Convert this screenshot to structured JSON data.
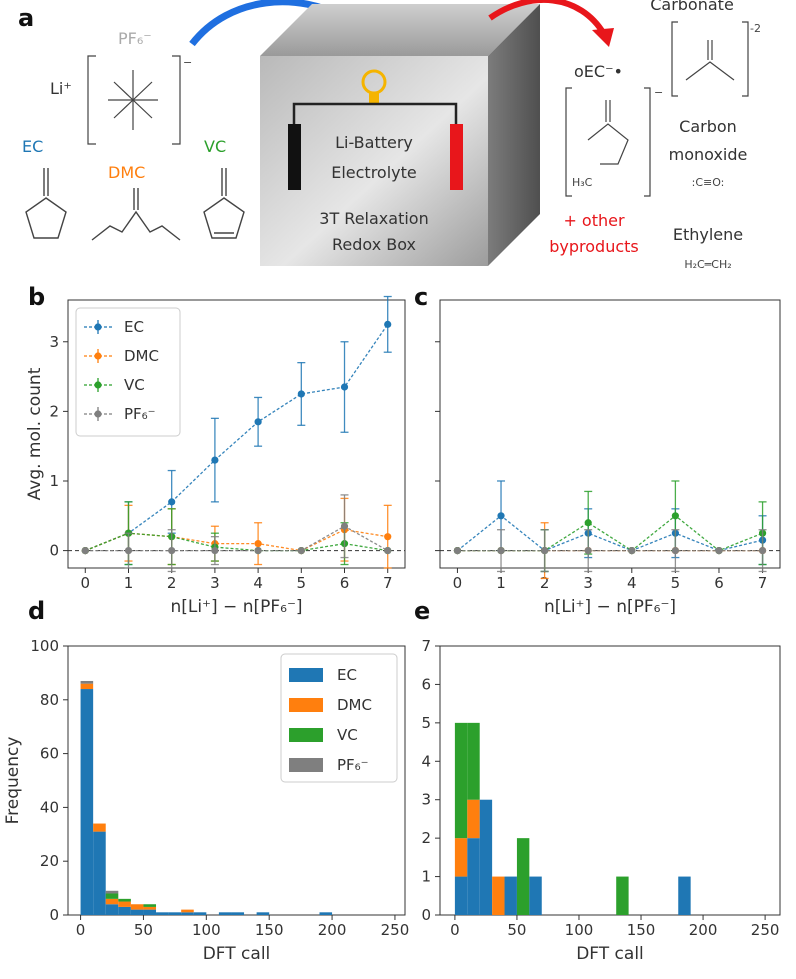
{
  "colors": {
    "EC": "#1f77b4",
    "DMC": "#ff7f0e",
    "VC": "#2ca02c",
    "PF6": "#7f7f7f",
    "blue_arrow": "#1f6fe0",
    "red": "#e8161b"
  },
  "schematic": {
    "panel_label": "a",
    "pf6": "PF₆⁻",
    "li": "Li⁺",
    "ec": "EC",
    "dmc": "DMC",
    "vc": "VC",
    "box_line1": "Li-Battery",
    "box_line2": "Electrolyte",
    "box_line3": "3T Relaxation",
    "box_line4": "Redox Box",
    "carbonate": "Carbonate",
    "carbonate_charge": "-2",
    "oec": "oEC⁻•",
    "carbon_monoxide_1": "Carbon",
    "carbon_monoxide_2": "monoxide",
    "co_formula": ":C≡O:",
    "ethylene": "Ethylene",
    "ethylene_formula": "H₂C═CH₂",
    "other_1": "+ other",
    "other_2": "byproducts",
    "h3c": "H₃C"
  },
  "chart_data": [
    {
      "panel": "b",
      "type": "line",
      "xlabel": "n[Li⁺] − n[PF₆⁻]",
      "ylabel": "Avg. mol. count",
      "x": [
        0,
        1,
        2,
        3,
        4,
        5,
        6,
        7
      ],
      "xlim": [
        -0.4,
        7.4
      ],
      "ylim": [
        -0.25,
        3.6
      ],
      "xticks": [
        "0",
        "1",
        "2",
        "3",
        "4",
        "5",
        "6",
        "7"
      ],
      "yticks": [
        "0",
        "1",
        "2",
        "3"
      ],
      "legend": [
        "EC",
        "DMC",
        "VC",
        "PF₆⁻"
      ],
      "legend_position": "upper-left",
      "baseline": 0,
      "series": [
        {
          "name": "EC",
          "values": [
            0,
            0.25,
            0.7,
            1.3,
            1.85,
            2.25,
            2.35,
            3.25
          ],
          "err": [
            0,
            0.45,
            0.45,
            0.6,
            0.35,
            0.45,
            0.65,
            0.4
          ]
        },
        {
          "name": "DMC",
          "values": [
            0,
            0.25,
            0.2,
            0.1,
            0.1,
            0,
            0.3,
            0.2
          ],
          "err": [
            0,
            0.4,
            0.4,
            0.25,
            0.3,
            0,
            0.45,
            0.45
          ]
        },
        {
          "name": "VC",
          "values": [
            0,
            0.25,
            0.2,
            0.05,
            0,
            0,
            0.1,
            0
          ],
          "err": [
            0,
            0.45,
            0.4,
            0.2,
            0,
            0,
            0.3,
            0
          ]
        },
        {
          "name": "PF₆⁻",
          "values": [
            0,
            0,
            0,
            0,
            0,
            0,
            0.35,
            0
          ],
          "err": [
            0,
            0.25,
            0.3,
            0.2,
            0,
            0,
            0.45,
            0
          ]
        }
      ]
    },
    {
      "panel": "c",
      "type": "line",
      "xlabel": "n[Li⁺] − n[PF₆⁻]",
      "x": [
        0,
        1,
        2,
        3,
        4,
        5,
        6,
        7
      ],
      "xlim": [
        -0.4,
        7.4
      ],
      "ylim": [
        -0.25,
        3.6
      ],
      "xticks": [
        "0",
        "1",
        "2",
        "3",
        "4",
        "5",
        "6",
        "7"
      ],
      "baseline": 0,
      "series": [
        {
          "name": "EC",
          "values": [
            0,
            0.5,
            0,
            0.25,
            0,
            0.25,
            0,
            0.15
          ],
          "err": [
            0,
            0.5,
            0.3,
            0.35,
            0,
            0.35,
            0,
            0.35
          ]
        },
        {
          "name": "DMC",
          "values": [
            0,
            0,
            0,
            0,
            0,
            0,
            0,
            0
          ],
          "err": [
            0,
            0,
            0.4,
            0,
            0,
            0,
            0,
            0
          ]
        },
        {
          "name": "VC",
          "values": [
            0,
            0,
            0,
            0.4,
            0,
            0.5,
            0,
            0.25
          ],
          "err": [
            0,
            0,
            0.3,
            0.45,
            0,
            0.5,
            0,
            0.45
          ]
        },
        {
          "name": "PF₆⁻",
          "values": [
            0,
            0,
            0,
            0,
            0,
            0,
            0,
            0
          ],
          "err": [
            0,
            0.3,
            0.3,
            0.3,
            0,
            0.3,
            0,
            0.3
          ]
        }
      ]
    },
    {
      "panel": "d",
      "type": "bar",
      "stacked": true,
      "xlabel": "DFT call",
      "ylabel": "Frequency",
      "xlim": [
        -10,
        258
      ],
      "ylim": [
        0,
        100
      ],
      "xticks": [
        "0",
        "50",
        "100",
        "150",
        "200",
        "250"
      ],
      "yticks": [
        "0",
        "20",
        "40",
        "60",
        "80",
        "100"
      ],
      "legend": [
        "EC",
        "DMC",
        "VC",
        "PF₆⁻"
      ],
      "legend_position": "upper-right",
      "bins": [
        {
          "x0": 0,
          "x1": 10,
          "EC": 84,
          "DMC": 2,
          "VC": 0,
          "PF6": 1
        },
        {
          "x0": 10,
          "x1": 20,
          "EC": 31,
          "DMC": 3,
          "VC": 0,
          "PF6": 0
        },
        {
          "x0": 20,
          "x1": 30,
          "EC": 4,
          "DMC": 2,
          "VC": 2,
          "PF6": 1
        },
        {
          "x0": 30,
          "x1": 40,
          "EC": 3,
          "DMC": 2,
          "VC": 1,
          "PF6": 0
        },
        {
          "x0": 40,
          "x1": 50,
          "EC": 2,
          "DMC": 2,
          "VC": 0,
          "PF6": 0
        },
        {
          "x0": 50,
          "x1": 60,
          "EC": 2,
          "DMC": 1,
          "VC": 1,
          "PF6": 0
        },
        {
          "x0": 60,
          "x1": 70,
          "EC": 1,
          "DMC": 0,
          "VC": 0,
          "PF6": 0
        },
        {
          "x0": 70,
          "x1": 80,
          "EC": 1,
          "DMC": 0,
          "VC": 0,
          "PF6": 0
        },
        {
          "x0": 80,
          "x1": 90,
          "EC": 1,
          "DMC": 1,
          "VC": 0,
          "PF6": 0
        },
        {
          "x0": 90,
          "x1": 100,
          "EC": 1,
          "DMC": 0,
          "VC": 0,
          "PF6": 0
        },
        {
          "x0": 110,
          "x1": 120,
          "EC": 1,
          "DMC": 0,
          "VC": 0,
          "PF6": 0
        },
        {
          "x0": 120,
          "x1": 130,
          "EC": 1,
          "DMC": 0,
          "VC": 0,
          "PF6": 0
        },
        {
          "x0": 140,
          "x1": 150,
          "EC": 1,
          "DMC": 0,
          "VC": 0,
          "PF6": 0
        },
        {
          "x0": 190,
          "x1": 200,
          "EC": 1,
          "DMC": 0,
          "VC": 0,
          "PF6": 0
        }
      ]
    },
    {
      "panel": "e",
      "type": "bar",
      "stacked": true,
      "xlabel": "DFT call",
      "xlim": [
        -12,
        262
      ],
      "ylim": [
        0,
        7
      ],
      "xticks": [
        "0",
        "50",
        "100",
        "150",
        "200",
        "250"
      ],
      "yticks": [
        "0",
        "1",
        "2",
        "3",
        "4",
        "5",
        "6",
        "7"
      ],
      "bins": [
        {
          "x0": 0,
          "x1": 10,
          "EC": 1,
          "DMC": 1,
          "VC": 3,
          "PF6": 0
        },
        {
          "x0": 10,
          "x1": 20,
          "EC": 2,
          "DMC": 1,
          "VC": 2,
          "PF6": 0
        },
        {
          "x0": 20,
          "x1": 30,
          "EC": 3,
          "DMC": 0,
          "VC": 0,
          "PF6": 0
        },
        {
          "x0": 30,
          "x1": 40,
          "EC": 0,
          "DMC": 1,
          "VC": 0,
          "PF6": 0
        },
        {
          "x0": 40,
          "x1": 50,
          "EC": 1,
          "DMC": 0,
          "VC": 0,
          "PF6": 0
        },
        {
          "x0": 50,
          "x1": 60,
          "EC": 0,
          "DMC": 0,
          "VC": 2,
          "PF6": 0
        },
        {
          "x0": 60,
          "x1": 70,
          "EC": 1,
          "DMC": 0,
          "VC": 0,
          "PF6": 0
        },
        {
          "x0": 130,
          "x1": 140,
          "EC": 0,
          "DMC": 0,
          "VC": 1,
          "PF6": 0
        },
        {
          "x0": 180,
          "x1": 190,
          "EC": 1,
          "DMC": 0,
          "VC": 0,
          "PF6": 0
        }
      ]
    }
  ]
}
